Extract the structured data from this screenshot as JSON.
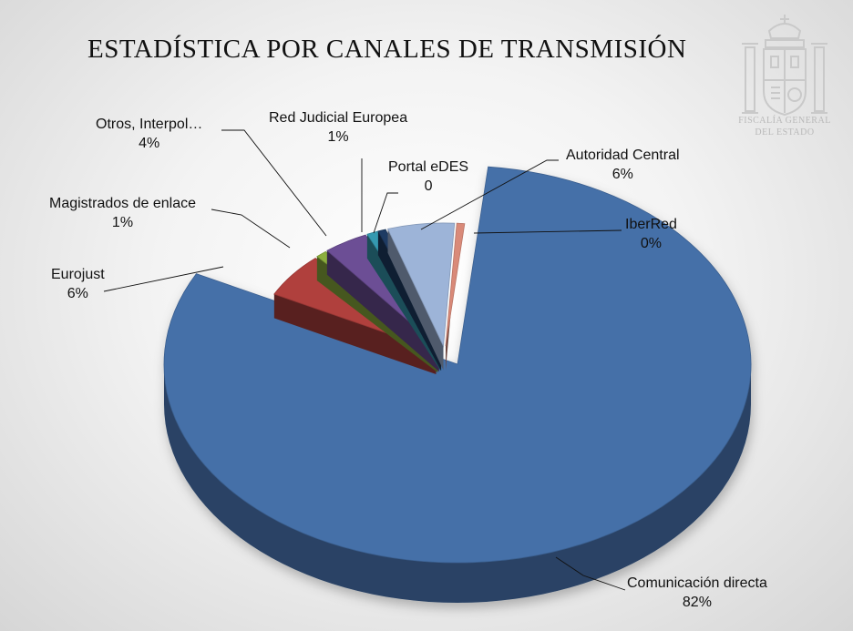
{
  "chart_data": {
    "type": "pie",
    "title": "ESTADÍSTICA POR CANALES DE TRANSMISIÓN",
    "slices": [
      {
        "name": "Comunicación directa",
        "value": 82,
        "label": "82%",
        "color": "#4570A8"
      },
      {
        "name": "Eurojust",
        "value": 6,
        "label": "6%",
        "color": "#B0403D"
      },
      {
        "name": "Magistrados de enlace",
        "value": 1,
        "label": "1%",
        "color": "#8BAE3D"
      },
      {
        "name": "Otros, Interpol…",
        "value": 4,
        "label": "4%",
        "color": "#6C4E95"
      },
      {
        "name": "Red Judicial Europea",
        "value": 1,
        "label": "1%",
        "color": "#3599B0"
      },
      {
        "name": "Portal eDES",
        "value": 0,
        "label": "0",
        "color": "#1E3B63"
      },
      {
        "name": "Autoridad Central",
        "value": 6,
        "label": "6%",
        "color": "#9DB4D8"
      },
      {
        "name": "IberRed",
        "value": 0,
        "label": "0%",
        "color": "#D98A79"
      }
    ],
    "legend": "none",
    "data_labels": "outside-with-leader-lines"
  },
  "watermark": {
    "line1": "FISCALÍA GENERAL",
    "line2": "DEL ESTADO"
  }
}
